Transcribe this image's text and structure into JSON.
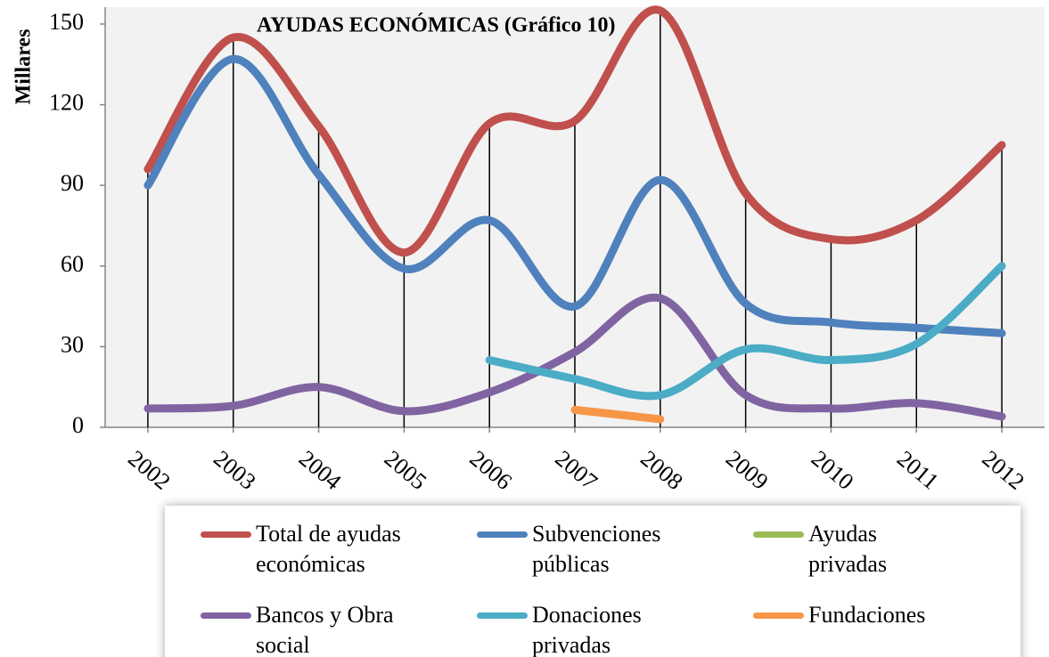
{
  "chart_data": {
    "type": "line",
    "title": "AYUDAS ECONÓMICAS (Gráfico 10)",
    "y_label": "Millares",
    "categories": [
      "2002",
      "2003",
      "2004",
      "2005",
      "2006",
      "2007",
      "2008",
      "2009",
      "2010",
      "2011",
      "2012"
    ],
    "ylim": [
      0,
      150
    ],
    "yticks": [
      0,
      30,
      60,
      90,
      120,
      150
    ],
    "smooth": true,
    "drop_lines": true,
    "series": [
      {
        "name": "Total de ayudas económicas",
        "color": "#c0504d",
        "values": [
          96,
          145,
          112,
          65,
          113,
          114,
          155,
          87,
          70,
          77,
          105
        ]
      },
      {
        "name": "Subvenciones públicas",
        "color": "#4f81bd",
        "values": [
          90,
          137,
          94,
          59,
          77,
          45,
          92,
          46,
          39,
          37,
          35
        ]
      },
      {
        "name": "Ayudas privadas",
        "color": "#9bbb59",
        "values": [
          null,
          null,
          null,
          null,
          null,
          null,
          null,
          null,
          null,
          null,
          null
        ]
      },
      {
        "name": "Bancos y Obra social",
        "color": "#8064a2",
        "values": [
          7,
          8,
          15,
          6,
          13,
          28,
          48,
          12,
          7,
          9,
          4
        ]
      },
      {
        "name": "Donaciones privadas",
        "color": "#4bacc6",
        "values": [
          null,
          null,
          null,
          null,
          25,
          18,
          12,
          29,
          25,
          31,
          60
        ]
      },
      {
        "name": "Fundaciones",
        "color": "#f79646",
        "values": [
          null,
          null,
          null,
          null,
          null,
          6.5,
          3,
          null,
          null,
          null,
          null
        ]
      }
    ]
  }
}
